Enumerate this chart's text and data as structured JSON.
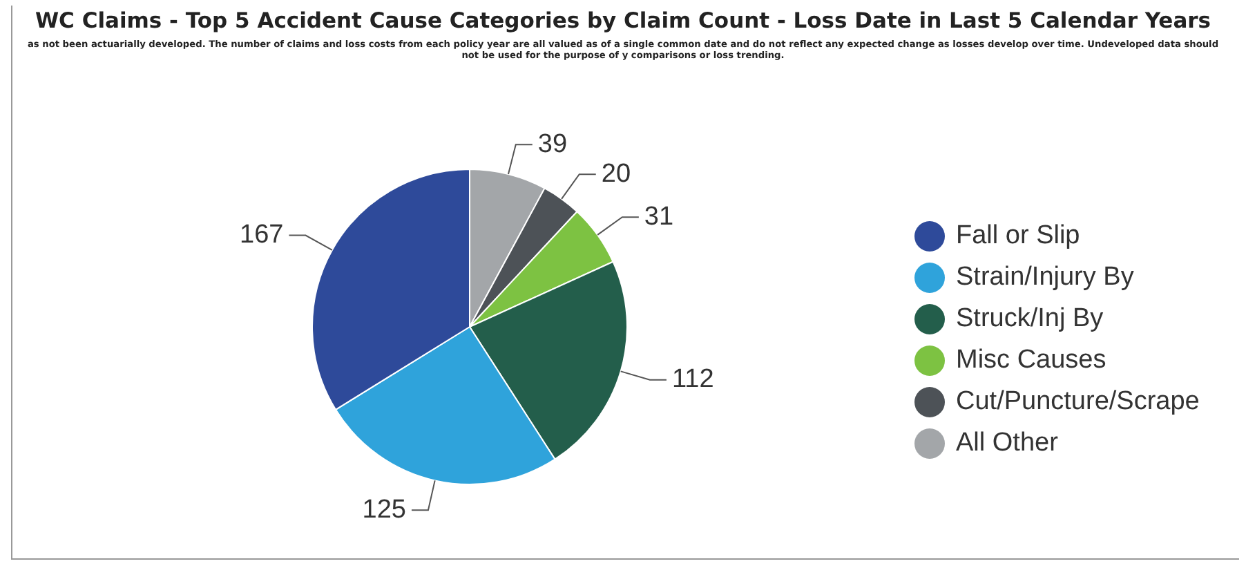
{
  "chart_data": {
    "type": "pie",
    "title": "WC Claims - Top 5 Accident Cause Categories by Claim Count - Loss Date in Last 5 Calendar Years",
    "subtitle": "as not been actuarially developed. The number of claims and loss costs from each policy year are all valued as of a single common date and do not reflect any expected change as losses develop over time. Undeveloped data should not be used for the purpose of y comparisons or loss trending.",
    "categories": [
      "Fall or Slip",
      "Strain/Injury By",
      "Struck/Inj By",
      "Misc Causes",
      "Cut/Puncture/Scrape",
      "All Other"
    ],
    "values": [
      167,
      125,
      112,
      31,
      20,
      39
    ],
    "colors": [
      "#2e4a9a",
      "#2fa3db",
      "#235e4b",
      "#7dc242",
      "#4d5257",
      "#a3a6a9"
    ],
    "data_labels": true,
    "legend": "right"
  }
}
